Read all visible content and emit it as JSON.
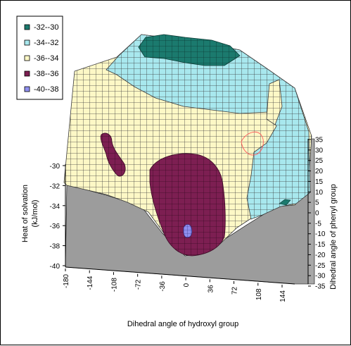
{
  "chart_data": {
    "type": "surface",
    "title": "",
    "zlabel_line1": "Heat of solvation",
    "zlabel_line2": "(kJ/mol)",
    "xlabel": "Dihedral angle of hydroxyl group",
    "ylabel": "Dihedral angle of phenyl group",
    "zlim": [
      -40,
      -30
    ],
    "z_ticks": [
      "-30",
      "-32",
      "-34",
      "-36",
      "-38",
      "-40"
    ],
    "x_ticks": [
      "-180",
      "-144",
      "-108",
      "-72",
      "-36",
      "0",
      "36",
      "72",
      "108",
      "144"
    ],
    "y_ticks": [
      "35",
      "30",
      "25",
      "20",
      "15",
      "10",
      "5",
      "0",
      "-5",
      "-10",
      "-15",
      "-20",
      "-25",
      "-30",
      "-35"
    ],
    "legend": [
      {
        "label": "-32--30",
        "color": "#1b7a6e"
      },
      {
        "label": "-34--32",
        "color": "#a8e8ee"
      },
      {
        "label": "-36--34",
        "color": "#fdf8c6"
      },
      {
        "label": "-38--36",
        "color": "#7d1f52"
      },
      {
        "label": "-40--38",
        "color": "#8f8ff0"
      }
    ],
    "legend_position": "top-left",
    "floor_color": "#9c9c9c",
    "wall_color": "#a8a8a8"
  }
}
